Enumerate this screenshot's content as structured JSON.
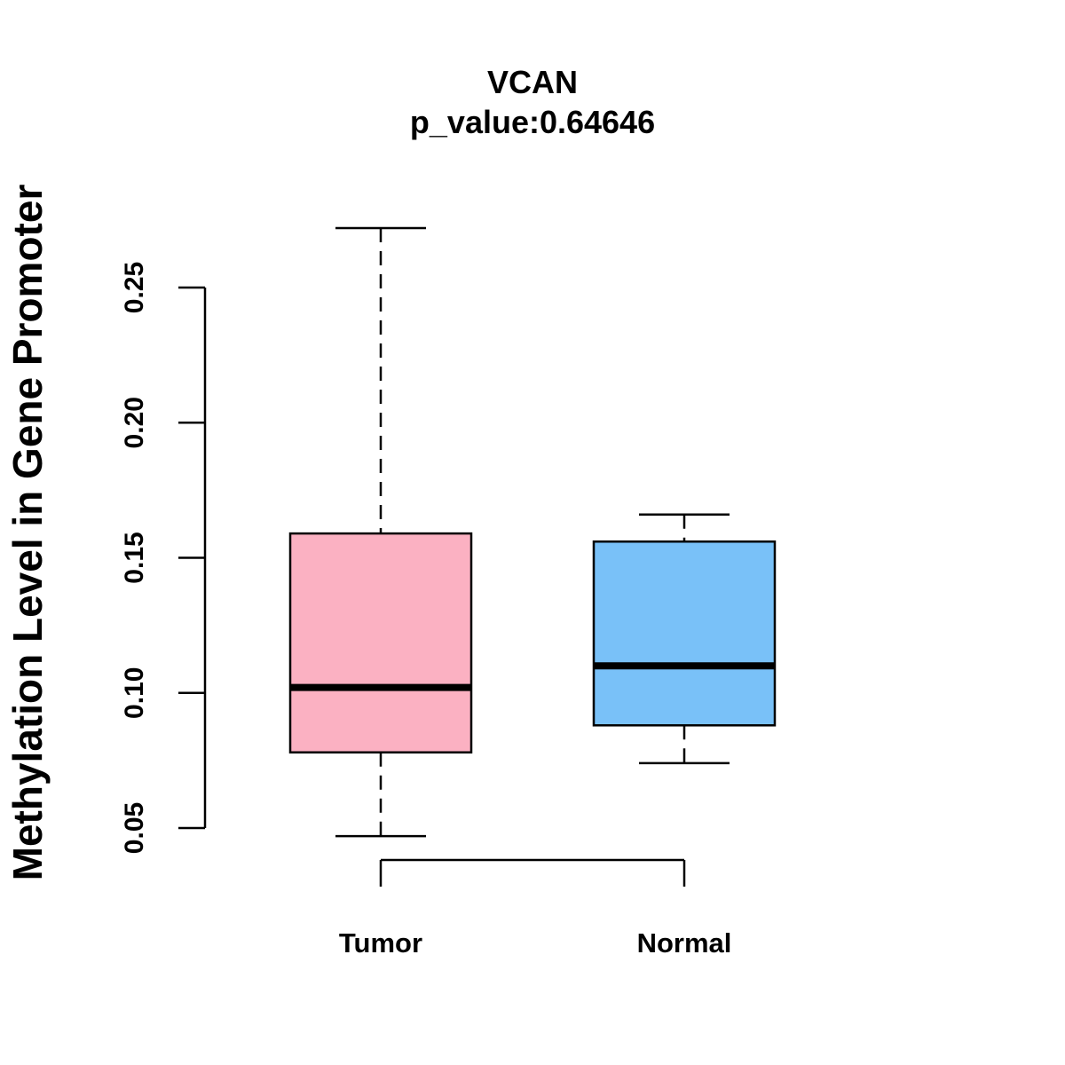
{
  "chart_data": {
    "type": "boxplot",
    "title": "VCAN",
    "subtitle": "p_value:0.64646",
    "xlabel": "",
    "ylabel": "Methylation Level in Gene Promoter",
    "yticks": [
      0.05,
      0.1,
      0.15,
      0.2,
      0.25
    ],
    "ytick_labels": [
      "0.05",
      "0.10",
      "0.15",
      "0.20",
      "0.25"
    ],
    "categories": [
      "Tumor",
      "Normal"
    ],
    "boxes": [
      {
        "name": "Tumor",
        "color": "#FBB1C2",
        "whisker_low": 0.047,
        "q1": 0.078,
        "median": 0.102,
        "q3": 0.159,
        "whisker_high": 0.272
      },
      {
        "name": "Normal",
        "color": "#79C1F8",
        "whisker_low": 0.074,
        "q1": 0.088,
        "median": 0.11,
        "q3": 0.156,
        "whisker_high": 0.166
      }
    ],
    "grid": false
  }
}
